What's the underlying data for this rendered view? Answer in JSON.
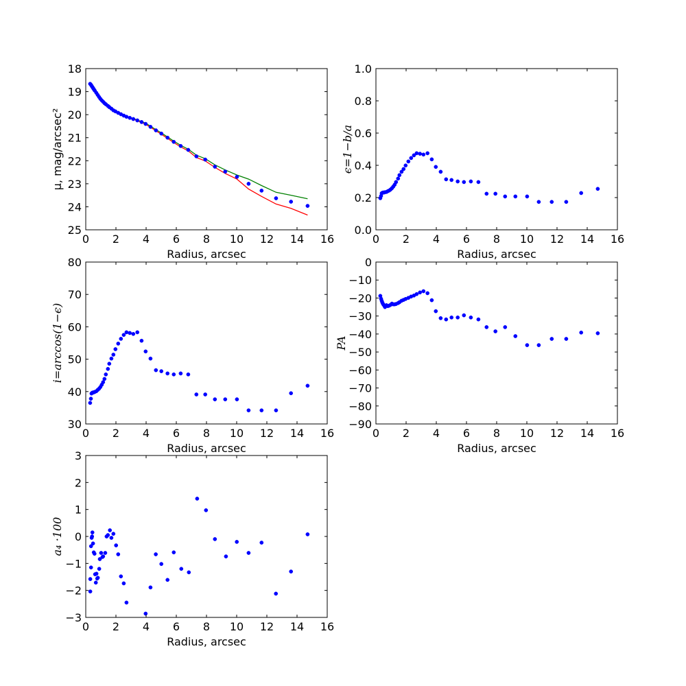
{
  "chart_data": [
    {
      "type": "scatter+line",
      "panel": "surface-brightness",
      "xlabel": "Radius, arcsec",
      "ylabel": "μ, mag/arcsec²",
      "xlim": [
        0,
        16
      ],
      "ylim": [
        25,
        18
      ],
      "y_inverted": true,
      "xticks": [
        0,
        2,
        4,
        6,
        8,
        10,
        12,
        14,
        16
      ],
      "yticks": [
        18,
        19,
        20,
        21,
        22,
        23,
        24,
        25
      ],
      "x": [
        0.29,
        0.34,
        0.38,
        0.42,
        0.46,
        0.5,
        0.55,
        0.6,
        0.7,
        0.79,
        0.88,
        0.97,
        1.06,
        1.15,
        1.24,
        1.33,
        1.47,
        1.56,
        1.7,
        1.83,
        1.97,
        2.15,
        2.33,
        2.52,
        2.7,
        2.92,
        3.15,
        3.42,
        3.7,
        3.97,
        4.29,
        4.65,
        5.01,
        5.42,
        5.83,
        6.29,
        6.79,
        7.33,
        7.92,
        8.56,
        9.24,
        10.02,
        10.79,
        11.65,
        12.61,
        13.6,
        14.7
      ],
      "series": [
        {
          "name": "data",
          "kind": "points",
          "color": "#0000ff",
          "values": [
            18.66,
            18.7,
            18.74,
            18.78,
            18.82,
            18.86,
            18.91,
            18.96,
            19.05,
            19.14,
            19.23,
            19.31,
            19.38,
            19.44,
            19.5,
            19.55,
            19.62,
            19.67,
            19.74,
            19.81,
            19.86,
            19.92,
            19.98,
            20.04,
            20.09,
            20.14,
            20.19,
            20.25,
            20.32,
            20.4,
            20.53,
            20.68,
            20.82,
            21.0,
            21.18,
            21.36,
            21.53,
            21.81,
            21.95,
            22.26,
            22.47,
            22.7,
            23.0,
            23.3,
            23.63,
            23.78,
            23.96
          ]
        },
        {
          "name": "model-green",
          "kind": "line",
          "color": "#008000",
          "values": [
            18.65,
            18.69,
            18.73,
            18.77,
            18.81,
            18.85,
            18.9,
            18.95,
            19.04,
            19.13,
            19.22,
            19.3,
            19.37,
            19.43,
            19.49,
            19.54,
            19.61,
            19.66,
            19.73,
            19.8,
            19.85,
            19.9,
            19.96,
            20.02,
            20.07,
            20.12,
            20.17,
            20.23,
            20.3,
            20.37,
            20.5,
            20.65,
            20.79,
            20.97,
            21.15,
            21.33,
            21.5,
            21.76,
            21.91,
            22.18,
            22.4,
            22.62,
            22.8,
            23.08,
            23.37,
            23.5,
            23.65
          ]
        },
        {
          "name": "model-red",
          "kind": "line",
          "color": "#ff0000",
          "values": [
            18.67,
            18.71,
            18.75,
            18.79,
            18.83,
            18.87,
            18.92,
            18.97,
            19.06,
            19.15,
            19.24,
            19.32,
            19.39,
            19.45,
            19.51,
            19.56,
            19.63,
            19.68,
            19.75,
            19.82,
            19.87,
            19.93,
            19.99,
            20.05,
            20.1,
            20.15,
            20.2,
            20.26,
            20.34,
            20.42,
            20.55,
            20.7,
            20.85,
            21.03,
            21.21,
            21.4,
            21.57,
            21.86,
            22.01,
            22.29,
            22.55,
            22.8,
            23.23,
            23.55,
            23.88,
            24.07,
            24.36
          ]
        }
      ]
    },
    {
      "type": "scatter",
      "panel": "ellipticity",
      "xlabel": "Radius, arcsec",
      "ylabel": "ϵ=1−b/a",
      "xlim": [
        0,
        16
      ],
      "ylim": [
        0.0,
        1.0
      ],
      "xticks": [
        0,
        2,
        4,
        6,
        8,
        10,
        12,
        14,
        16
      ],
      "yticks": [
        "0.0",
        "0.2",
        "0.4",
        "0.6",
        "0.8",
        "1.0"
      ],
      "x": [
        0.29,
        0.34,
        0.38,
        0.42,
        0.46,
        0.5,
        0.55,
        0.6,
        0.7,
        0.79,
        0.88,
        0.97,
        1.06,
        1.15,
        1.24,
        1.33,
        1.47,
        1.56,
        1.7,
        1.83,
        1.97,
        2.15,
        2.33,
        2.52,
        2.7,
        2.92,
        3.15,
        3.42,
        3.7,
        3.97,
        4.29,
        4.65,
        5.01,
        5.42,
        5.83,
        6.29,
        6.79,
        7.33,
        7.92,
        8.56,
        9.24,
        10.02,
        10.79,
        11.65,
        12.61,
        13.6,
        14.7
      ],
      "series": [
        {
          "name": "ellipticity",
          "color": "#0000ff",
          "values": [
            0.196,
            0.21,
            0.227,
            0.229,
            0.231,
            0.231,
            0.232,
            0.233,
            0.235,
            0.24,
            0.244,
            0.25,
            0.258,
            0.268,
            0.28,
            0.296,
            0.318,
            0.339,
            0.36,
            0.377,
            0.399,
            0.424,
            0.445,
            0.462,
            0.475,
            0.472,
            0.467,
            0.475,
            0.437,
            0.39,
            0.36,
            0.313,
            0.309,
            0.3,
            0.296,
            0.3,
            0.296,
            0.224,
            0.224,
            0.207,
            0.207,
            0.207,
            0.173,
            0.173,
            0.173,
            0.228,
            0.254
          ]
        }
      ]
    },
    {
      "type": "scatter",
      "panel": "inclination",
      "xlabel": "Radius, arcsec",
      "ylabel": "i=arccos(1−ϵ)",
      "xlim": [
        0,
        16
      ],
      "ylim": [
        30,
        80
      ],
      "xticks": [
        0,
        2,
        4,
        6,
        8,
        10,
        12,
        14,
        16
      ],
      "yticks": [
        30,
        40,
        50,
        60,
        70,
        80
      ],
      "x": [
        0.29,
        0.34,
        0.38,
        0.42,
        0.46,
        0.5,
        0.55,
        0.6,
        0.7,
        0.79,
        0.88,
        0.97,
        1.06,
        1.15,
        1.24,
        1.33,
        1.47,
        1.56,
        1.7,
        1.83,
        1.97,
        2.15,
        2.33,
        2.52,
        2.7,
        2.92,
        3.15,
        3.42,
        3.7,
        3.97,
        4.29,
        4.65,
        5.01,
        5.42,
        5.83,
        6.29,
        6.79,
        7.33,
        7.92,
        8.56,
        9.24,
        10.02,
        10.79,
        11.65,
        12.61,
        13.6,
        14.7
      ],
      "series": [
        {
          "name": "inclination",
          "color": "#0000ff",
          "values": [
            36.5,
            37.8,
            39.4,
            39.6,
            39.7,
            39.7,
            39.8,
            39.9,
            40.1,
            40.5,
            40.9,
            41.4,
            42.1,
            42.9,
            43.9,
            45.3,
            47.0,
            48.6,
            50.2,
            51.4,
            53.1,
            54.8,
            56.3,
            57.5,
            58.3,
            58.1,
            57.8,
            58.3,
            55.7,
            52.4,
            50.2,
            46.6,
            46.3,
            45.6,
            45.3,
            45.6,
            45.3,
            39.1,
            39.1,
            37.6,
            37.6,
            37.6,
            34.2,
            34.2,
            34.2,
            39.5,
            41.8
          ]
        }
      ]
    },
    {
      "type": "scatter",
      "panel": "position-angle",
      "xlabel": "Radius, arcsec",
      "ylabel": "PA",
      "xlim": [
        0,
        16
      ],
      "ylim": [
        -90,
        0
      ],
      "xticks": [
        0,
        2,
        4,
        6,
        8,
        10,
        12,
        14,
        16
      ],
      "yticks": [
        0,
        -10,
        -20,
        -30,
        -40,
        -50,
        -60,
        -70,
        -80,
        -90
      ],
      "x": [
        0.29,
        0.34,
        0.38,
        0.42,
        0.46,
        0.5,
        0.55,
        0.6,
        0.7,
        0.79,
        0.88,
        0.97,
        1.06,
        1.15,
        1.24,
        1.33,
        1.47,
        1.56,
        1.7,
        1.83,
        1.97,
        2.15,
        2.33,
        2.52,
        2.7,
        2.92,
        3.15,
        3.42,
        3.7,
        3.97,
        4.29,
        4.65,
        5.01,
        5.42,
        5.83,
        6.29,
        6.79,
        7.33,
        7.92,
        8.56,
        9.24,
        10.02,
        10.79,
        11.65,
        12.61,
        13.6,
        14.7
      ],
      "series": [
        {
          "name": "PA",
          "color": "#0000ff",
          "values": [
            -18.8,
            -20.4,
            -21.5,
            -22.4,
            -23.1,
            -23.7,
            -24.2,
            -25.0,
            -24.0,
            -24.5,
            -24.2,
            -23.8,
            -23.1,
            -23.5,
            -23.5,
            -23.3,
            -22.8,
            -22.3,
            -21.5,
            -21.0,
            -20.5,
            -19.9,
            -19.2,
            -18.6,
            -17.8,
            -16.9,
            -16.2,
            -17.3,
            -21.2,
            -27.3,
            -31.2,
            -31.9,
            -30.8,
            -30.8,
            -29.6,
            -30.8,
            -31.9,
            -36.2,
            -38.5,
            -36.2,
            -41.2,
            -46.2,
            -46.2,
            -42.7,
            -42.7,
            -39.2,
            -39.6
          ]
        }
      ]
    },
    {
      "type": "scatter",
      "panel": "a4",
      "xlabel": "Radius, arcsec",
      "ylabel": "a₄ ·100",
      "xlim": [
        0,
        16
      ],
      "ylim": [
        -3,
        3
      ],
      "xticks": [
        0,
        2,
        4,
        6,
        8,
        10,
        12,
        14,
        16
      ],
      "yticks": [
        3,
        2,
        1,
        0,
        -1,
        -2,
        -3
      ],
      "x": [
        0.3,
        0.3,
        0.35,
        0.35,
        0.39,
        0.42,
        0.44,
        0.48,
        0.53,
        0.58,
        0.62,
        0.67,
        0.71,
        0.76,
        0.8,
        0.89,
        0.93,
        1.02,
        1.11,
        1.15,
        1.29,
        1.38,
        1.47,
        1.6,
        1.7,
        1.83,
        2.01,
        2.15,
        2.33,
        2.52,
        2.7,
        3.97,
        4.29,
        4.64,
        5.01,
        5.42,
        5.83,
        6.33,
        6.83,
        7.38,
        7.97,
        8.56,
        9.29,
        10.01,
        10.79,
        11.65,
        12.6,
        13.6,
        14.7
      ],
      "series": [
        {
          "name": "a4",
          "color": "#0000ff",
          "values": [
            -2.04,
            -1.58,
            -1.15,
            -0.36,
            -0.05,
            0.0,
            0.15,
            -0.26,
            -0.59,
            -0.64,
            -1.4,
            -1.71,
            -1.38,
            -1.56,
            -1.53,
            -1.2,
            -0.84,
            -0.61,
            -0.76,
            -0.74,
            -0.61,
            0.0,
            0.05,
            0.23,
            -0.05,
            0.1,
            -0.33,
            -0.66,
            -1.48,
            -1.74,
            -2.45,
            -2.86,
            -1.89,
            -0.66,
            -1.02,
            -1.61,
            -0.59,
            -1.2,
            -1.33,
            1.4,
            0.97,
            -0.1,
            -0.74,
            -0.2,
            -0.61,
            -0.23,
            -2.12,
            -1.3,
            0.08
          ]
        }
      ]
    }
  ]
}
